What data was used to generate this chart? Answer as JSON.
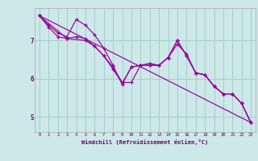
{
  "background_color": "#cce8e8",
  "grid_color": "#aacccc",
  "line_color": "#990099",
  "marker": "+",
  "xlabel": "Windchill (Refroidissement éolien,°C)",
  "xlabel_color": "#660066",
  "ylabel_color": "#660066",
  "xlim": [
    -0.5,
    23.5
  ],
  "ylim": [
    4.6,
    7.85
  ],
  "yticks": [
    5,
    6,
    7
  ],
  "xticks": [
    0,
    1,
    2,
    3,
    4,
    5,
    6,
    7,
    8,
    9,
    10,
    11,
    12,
    13,
    14,
    15,
    16,
    17,
    18,
    19,
    20,
    21,
    22,
    23
  ],
  "series1": {
    "x": [
      0,
      1,
      2,
      3,
      4,
      5,
      6,
      7,
      8,
      9,
      10,
      11,
      12,
      13,
      14,
      15,
      16,
      17,
      18,
      19,
      20,
      21,
      22,
      23
    ],
    "y": [
      7.65,
      7.4,
      7.2,
      7.1,
      7.55,
      7.4,
      7.15,
      6.8,
      6.35,
      5.85,
      6.3,
      6.35,
      6.4,
      6.35,
      6.55,
      7.0,
      6.6,
      6.15,
      6.1,
      5.8,
      5.6,
      5.6,
      5.35,
      4.85
    ]
  },
  "series2": {
    "x": [
      0,
      1,
      2,
      3,
      4,
      5,
      6,
      7,
      8,
      9,
      10,
      11,
      12,
      13,
      14,
      15,
      16,
      17,
      18,
      19,
      20,
      21,
      22,
      23
    ],
    "y": [
      7.65,
      7.35,
      7.1,
      7.05,
      7.1,
      7.05,
      6.85,
      6.6,
      6.3,
      5.9,
      5.9,
      6.35,
      6.35,
      6.35,
      6.55,
      6.9,
      6.65,
      6.15,
      6.1,
      5.8,
      5.6,
      5.6,
      5.35,
      4.85
    ]
  },
  "series3": {
    "x": [
      0,
      3,
      5,
      6,
      7,
      8,
      9,
      10,
      11,
      12,
      13,
      14,
      15,
      16,
      17,
      18,
      19,
      20,
      21,
      22,
      23
    ],
    "y": [
      7.65,
      7.05,
      7.0,
      6.85,
      6.6,
      6.25,
      5.88,
      6.3,
      6.35,
      6.35,
      6.35,
      6.55,
      7.0,
      6.6,
      6.15,
      6.1,
      5.8,
      5.6,
      5.6,
      5.35,
      4.85
    ]
  },
  "series4": {
    "x": [
      0,
      23
    ],
    "y": [
      7.65,
      4.85
    ]
  }
}
